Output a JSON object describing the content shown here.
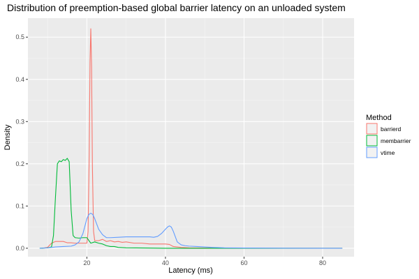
{
  "chart_data": {
    "type": "line",
    "title": "Distribution of preemption-based global barrier latency on an unloaded system",
    "xlabel": "Latency (ms)",
    "ylabel": "Density",
    "xlim": [
      5,
      88
    ],
    "ylim": [
      -0.02,
      0.545
    ],
    "x_ticks": [
      20,
      40,
      60,
      80
    ],
    "y_ticks": [
      0.0,
      0.1,
      0.2,
      0.3,
      0.4,
      0.5
    ],
    "x_tick_labels": [
      "20",
      "40",
      "60",
      "80"
    ],
    "y_tick_labels": [
      "0.0",
      "0.1",
      "0.2",
      "0.3",
      "0.4",
      "0.5"
    ],
    "grid": true,
    "legend": {
      "title": "Method",
      "position": "right"
    },
    "series": [
      {
        "name": "barrierd",
        "color": "#F8766D",
        "x": [
          8.5,
          10,
          11,
          12,
          13,
          14,
          15,
          16,
          17,
          18,
          19,
          20,
          20.3,
          20.6,
          20.8,
          21,
          21.2,
          21.4,
          21.7,
          22,
          23,
          24,
          25,
          26,
          27,
          28,
          29,
          30,
          32,
          34,
          36,
          38,
          40,
          41,
          42,
          44,
          46,
          50,
          55,
          60,
          70,
          80,
          85
        ],
        "y": [
          0,
          0.002,
          0.012,
          0.016,
          0.016,
          0.016,
          0.013,
          0.013,
          0.012,
          0.012,
          0.012,
          0.012,
          0.04,
          0.22,
          0.44,
          0.52,
          0.43,
          0.2,
          0.04,
          0.018,
          0.018,
          0.021,
          0.016,
          0.018,
          0.015,
          0.016,
          0.014,
          0.015,
          0.012,
          0.012,
          0.01,
          0.01,
          0.01,
          0.009,
          0.004,
          0.002,
          0.001,
          0.0005,
          0,
          0,
          0,
          0,
          0
        ]
      },
      {
        "name": "membarrier",
        "color": "#00BA38",
        "x": [
          8,
          10,
          11,
          11.5,
          12,
          12.5,
          13,
          13.5,
          14,
          14.5,
          15,
          15.5,
          16,
          16.5,
          17,
          18,
          19,
          20,
          21,
          22,
          23,
          24,
          25,
          26,
          27,
          28,
          30,
          35,
          40,
          50,
          60,
          70,
          80,
          85
        ],
        "y": [
          0,
          0.001,
          0.003,
          0.03,
          0.12,
          0.2,
          0.207,
          0.205,
          0.21,
          0.208,
          0.213,
          0.205,
          0.09,
          0.03,
          0.025,
          0.024,
          0.025,
          0.025,
          0.012,
          0.015,
          0.012,
          0.01,
          0.006,
          0.004,
          0.004,
          0.002,
          0.001,
          0.0005,
          0,
          0,
          0,
          0,
          0,
          0
        ]
      },
      {
        "name": "vtime",
        "color": "#619CFF",
        "x": [
          8,
          10,
          12,
          14,
          16,
          17,
          18,
          19,
          20,
          20.5,
          21,
          21.5,
          22,
          23,
          24,
          25,
          26,
          28,
          30,
          32,
          34,
          36,
          37,
          38,
          39,
          40,
          40.5,
          41,
          41.5,
          42,
          43,
          44,
          45,
          46,
          48,
          50,
          52,
          55,
          60,
          70,
          80,
          85
        ],
        "y": [
          0,
          0.001,
          0.003,
          0.004,
          0.005,
          0.008,
          0.015,
          0.035,
          0.07,
          0.08,
          0.083,
          0.08,
          0.07,
          0.045,
          0.032,
          0.025,
          0.025,
          0.026,
          0.027,
          0.027,
          0.027,
          0.027,
          0.026,
          0.028,
          0.035,
          0.045,
          0.05,
          0.053,
          0.05,
          0.04,
          0.015,
          0.008,
          0.006,
          0.005,
          0.004,
          0.003,
          0.002,
          0.001,
          0.0005,
          0.0002,
          0,
          0
        ]
      }
    ]
  }
}
